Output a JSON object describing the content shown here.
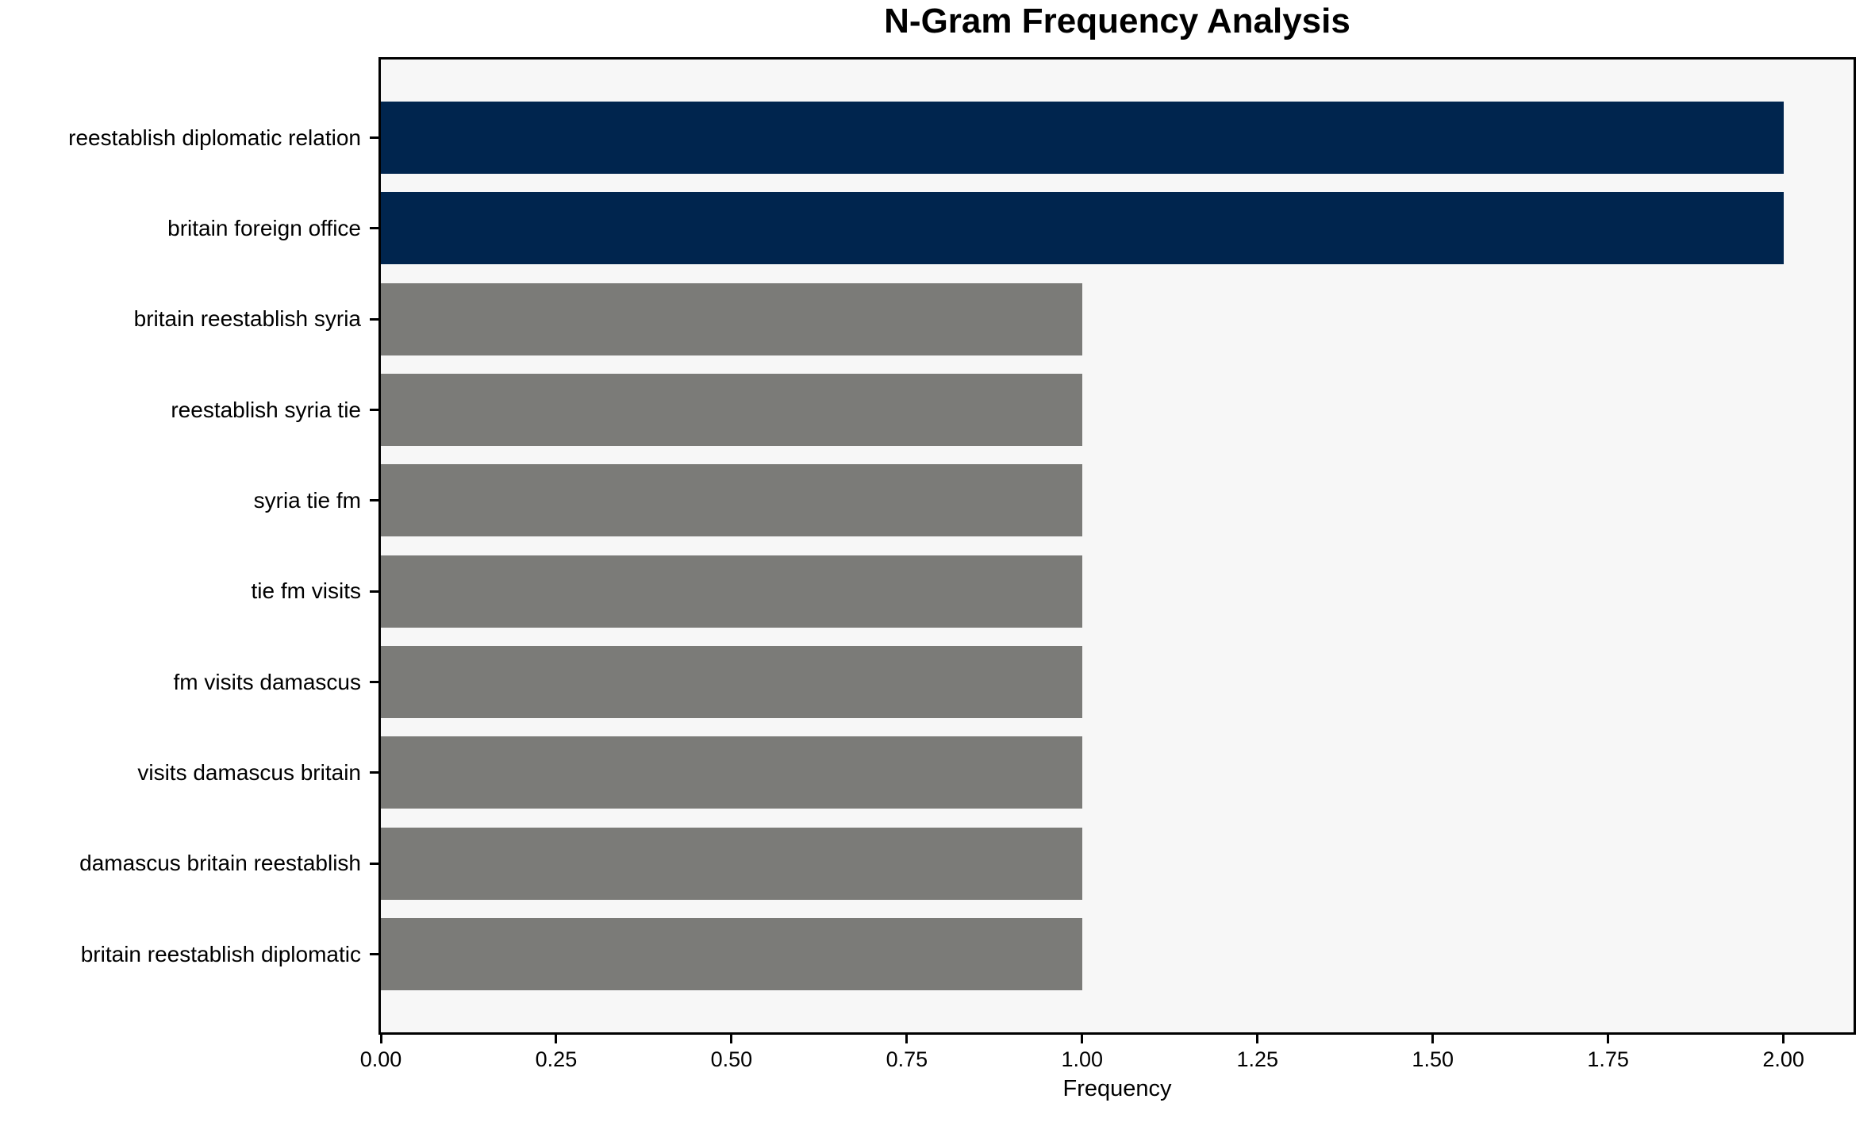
{
  "title": "N-Gram Frequency Analysis",
  "chart_data": {
    "type": "bar",
    "orientation": "horizontal",
    "title": "N-Gram Frequency Analysis",
    "xlabel": "Frequency",
    "ylabel": "",
    "categories": [
      "reestablish diplomatic relation",
      "britain foreign office",
      "britain reestablish syria",
      "reestablish syria tie",
      "syria tie fm",
      "tie fm visits",
      "fm visits damascus",
      "visits damascus britain",
      "damascus britain reestablish",
      "britain reestablish diplomatic"
    ],
    "values": [
      2,
      2,
      1,
      1,
      1,
      1,
      1,
      1,
      1,
      1
    ],
    "bar_colors": [
      "#00254e",
      "#00254e",
      "#7b7b78",
      "#7b7b78",
      "#7b7b78",
      "#7b7b78",
      "#7b7b78",
      "#7b7b78",
      "#7b7b78",
      "#7b7b78"
    ],
    "xlim": [
      0,
      2.1
    ],
    "xtick_values": [
      0,
      0.25,
      0.5,
      0.75,
      1.0,
      1.25,
      1.5,
      1.75,
      2.0
    ],
    "xtick_labels": [
      "0.00",
      "0.25",
      "0.50",
      "0.75",
      "1.00",
      "1.25",
      "1.50",
      "1.75",
      "2.00"
    ],
    "grid": false,
    "legend": null,
    "colors": {
      "highlight_bar": "#00254e",
      "default_bar": "#7b7b78",
      "plot_background": "#f7f7f7",
      "figure_background": "#ffffff",
      "axis": "#000000",
      "text": "#000000"
    }
  }
}
